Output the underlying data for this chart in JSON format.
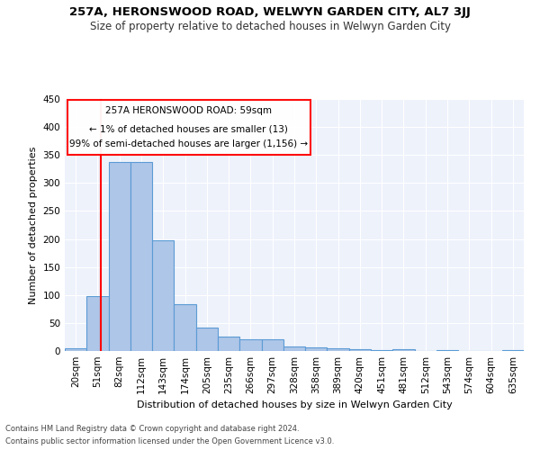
{
  "title": "257A, HERONSWOOD ROAD, WELWYN GARDEN CITY, AL7 3JJ",
  "subtitle": "Size of property relative to detached houses in Welwyn Garden City",
  "xlabel": "Distribution of detached houses by size in Welwyn Garden City",
  "ylabel": "Number of detached properties",
  "footnote1": "Contains HM Land Registry data © Crown copyright and database right 2024.",
  "footnote2": "Contains public sector information licensed under the Open Government Licence v3.0.",
  "annotation_line1": "257A HERONSWOOD ROAD: 59sqm",
  "annotation_line2": "← 1% of detached houses are smaller (13)",
  "annotation_line3": "99% of semi-detached houses are larger (1,156) →",
  "bar_color": "#aec6e8",
  "bar_edge_color": "#5b9bd5",
  "vline_color": "red",
  "bg_color": "#eef2fb",
  "grid_color": "#ffffff",
  "categories": [
    "20sqm",
    "51sqm",
    "82sqm",
    "112sqm",
    "143sqm",
    "174sqm",
    "205sqm",
    "235sqm",
    "266sqm",
    "297sqm",
    "328sqm",
    "358sqm",
    "389sqm",
    "420sqm",
    "451sqm",
    "481sqm",
    "512sqm",
    "543sqm",
    "574sqm",
    "604sqm",
    "635sqm"
  ],
  "values": [
    5,
    98,
    338,
    337,
    198,
    83,
    42,
    25,
    21,
    21,
    8,
    6,
    5,
    4,
    1,
    4,
    0,
    1,
    0,
    0,
    2
  ],
  "ylim": [
    0,
    450
  ],
  "yticks": [
    0,
    50,
    100,
    150,
    200,
    250,
    300,
    350,
    400,
    450
  ],
  "vline_pos": 1.15,
  "title_fontsize": 9.5,
  "subtitle_fontsize": 8.5,
  "ylabel_fontsize": 8,
  "xlabel_fontsize": 8,
  "tick_fontsize": 7.5,
  "annot_fontsize": 7.5,
  "footnote_fontsize": 6
}
